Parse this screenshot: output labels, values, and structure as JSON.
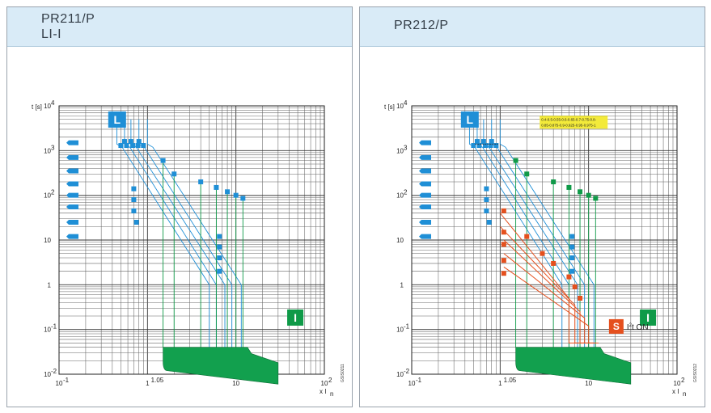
{
  "panels": [
    {
      "title_lines": [
        "PR211/P",
        "LI-I"
      ],
      "code": "GSIS0211",
      "chart_data": {
        "type": "line",
        "xscale": "log",
        "yscale": "log",
        "xlim": [
          0.1,
          100
        ],
        "ylim": [
          0.01,
          10000
        ],
        "ylabel": "t [s]",
        "xlabel_main": "x I",
        "xlabel_sub": "n",
        "x_ticks": [
          {
            "value": 0.1,
            "base": "10",
            "exp": "-1"
          },
          {
            "value": 1,
            "base": "1",
            "exp": ""
          },
          {
            "value": 10,
            "base": "10",
            "exp": ""
          },
          {
            "value": 100,
            "base": "10",
            "exp": "2"
          }
        ],
        "y_ticks": [
          {
            "value": 10000,
            "base": "10",
            "exp": "4"
          },
          {
            "value": 1000,
            "base": "10",
            "exp": "3"
          },
          {
            "value": 100,
            "base": "10",
            "exp": "2"
          },
          {
            "value": 10,
            "base": "10",
            "exp": ""
          },
          {
            "value": 1,
            "base": "1",
            "exp": ""
          },
          {
            "value": 0.1,
            "base": "10",
            "exp": "-1"
          },
          {
            "value": 0.01,
            "base": "10",
            "exp": "-2"
          }
        ],
        "annotation_105": "1.05",
        "tag_L": "L",
        "tag_I": "I",
        "colors": {
          "L": "#1f8fd6",
          "I": "#0f9a48",
          "band": "#12a04e"
        },
        "l_curves": [
          {
            "x0": 0.45,
            "t0": 1400,
            "x1": 5.0,
            "t1": 1.0
          },
          {
            "x0": 0.55,
            "t0": 1400,
            "x1": 6.0,
            "t1": 1.0
          },
          {
            "x0": 0.65,
            "t0": 1400,
            "x1": 7.5,
            "t1": 1.0
          },
          {
            "x0": 0.8,
            "t0": 1400,
            "x1": 9.0,
            "t1": 1.0
          },
          {
            "x0": 1.0,
            "t0": 1400,
            "x1": 11.5,
            "t1": 1.0
          }
        ],
        "i_thresholds": [
          1.5,
          2,
          4,
          6,
          8,
          10,
          12
        ],
        "band": {
          "x_start": 1.5,
          "x_end": 30,
          "t_top_left": 0.04,
          "t_top_right": 0.018,
          "t_bottom_left": 0.012,
          "t_bottom_right": 0.006
        }
      }
    },
    {
      "title_lines": [
        "PR212/P"
      ],
      "code": "GSIS0212",
      "chart_data": {
        "type": "line",
        "xscale": "log",
        "yscale": "log",
        "xlim": [
          0.1,
          100
        ],
        "ylim": [
          0.01,
          10000
        ],
        "ylabel": "t [s]",
        "xlabel_main": "x I",
        "xlabel_sub": "n",
        "x_ticks": [
          {
            "value": 0.1,
            "base": "10",
            "exp": "-1"
          },
          {
            "value": 1,
            "base": "1",
            "exp": ""
          },
          {
            "value": 10,
            "base": "10",
            "exp": ""
          },
          {
            "value": 100,
            "base": "10",
            "exp": "2"
          }
        ],
        "y_ticks": [
          {
            "value": 10000,
            "base": "10",
            "exp": "4"
          },
          {
            "value": 1000,
            "base": "10",
            "exp": "3"
          },
          {
            "value": 100,
            "base": "10",
            "exp": "2"
          },
          {
            "value": 10,
            "base": "10",
            "exp": ""
          },
          {
            "value": 1,
            "base": "1",
            "exp": ""
          },
          {
            "value": 0.1,
            "base": "10",
            "exp": "-1"
          },
          {
            "value": 0.01,
            "base": "10",
            "exp": "-2"
          }
        ],
        "annotation_105": "1.05",
        "setting_lines": [
          "0.4-0.5-0.55-0.6-0.65-0.7-0.75-0.8-",
          "0.85-0.875-0.9-0.925-0.95-0.975-1"
        ],
        "tag_L": "L",
        "tag_I": "I",
        "tag_S": "S",
        "s_label_main": "I",
        "s_label_sup": "2",
        "s_label_rest": "t ON",
        "colors": {
          "L": "#1f8fd6",
          "I": "#0f9a48",
          "S": "#e5501e",
          "band": "#12a04e",
          "note": "#f3ea3a"
        },
        "l_curves": [
          {
            "x0": 0.45,
            "t0": 1400,
            "x1": 5.0,
            "t1": 1.0
          },
          {
            "x0": 0.55,
            "t0": 1400,
            "x1": 6.0,
            "t1": 1.0
          },
          {
            "x0": 0.65,
            "t0": 1400,
            "x1": 7.5,
            "t1": 1.0
          },
          {
            "x0": 0.8,
            "t0": 1400,
            "x1": 9.0,
            "t1": 1.0
          },
          {
            "x0": 1.0,
            "t0": 1400,
            "x1": 11.5,
            "t1": 1.0
          }
        ],
        "s_curves": [
          {
            "x0": 1.0,
            "t0": 40,
            "x1": 6.0,
            "t1": 0.5
          },
          {
            "x0": 1.0,
            "t0": 20,
            "x1": 7.0,
            "t1": 0.35
          },
          {
            "x0": 1.1,
            "t0": 10,
            "x1": 8.0,
            "t1": 0.25
          },
          {
            "x0": 1.1,
            "t0": 5,
            "x1": 9.0,
            "t1": 0.18
          },
          {
            "x0": 1.1,
            "t0": 2.5,
            "x1": 10.0,
            "t1": 0.12
          }
        ],
        "i_thresholds": [
          1.5,
          2,
          4,
          6,
          8,
          10,
          12
        ],
        "band": {
          "x_start": 1.5,
          "x_end": 30,
          "t_top_left": 0.04,
          "t_top_right": 0.018,
          "t_bottom_left": 0.012,
          "t_bottom_right": 0.006
        }
      }
    }
  ]
}
